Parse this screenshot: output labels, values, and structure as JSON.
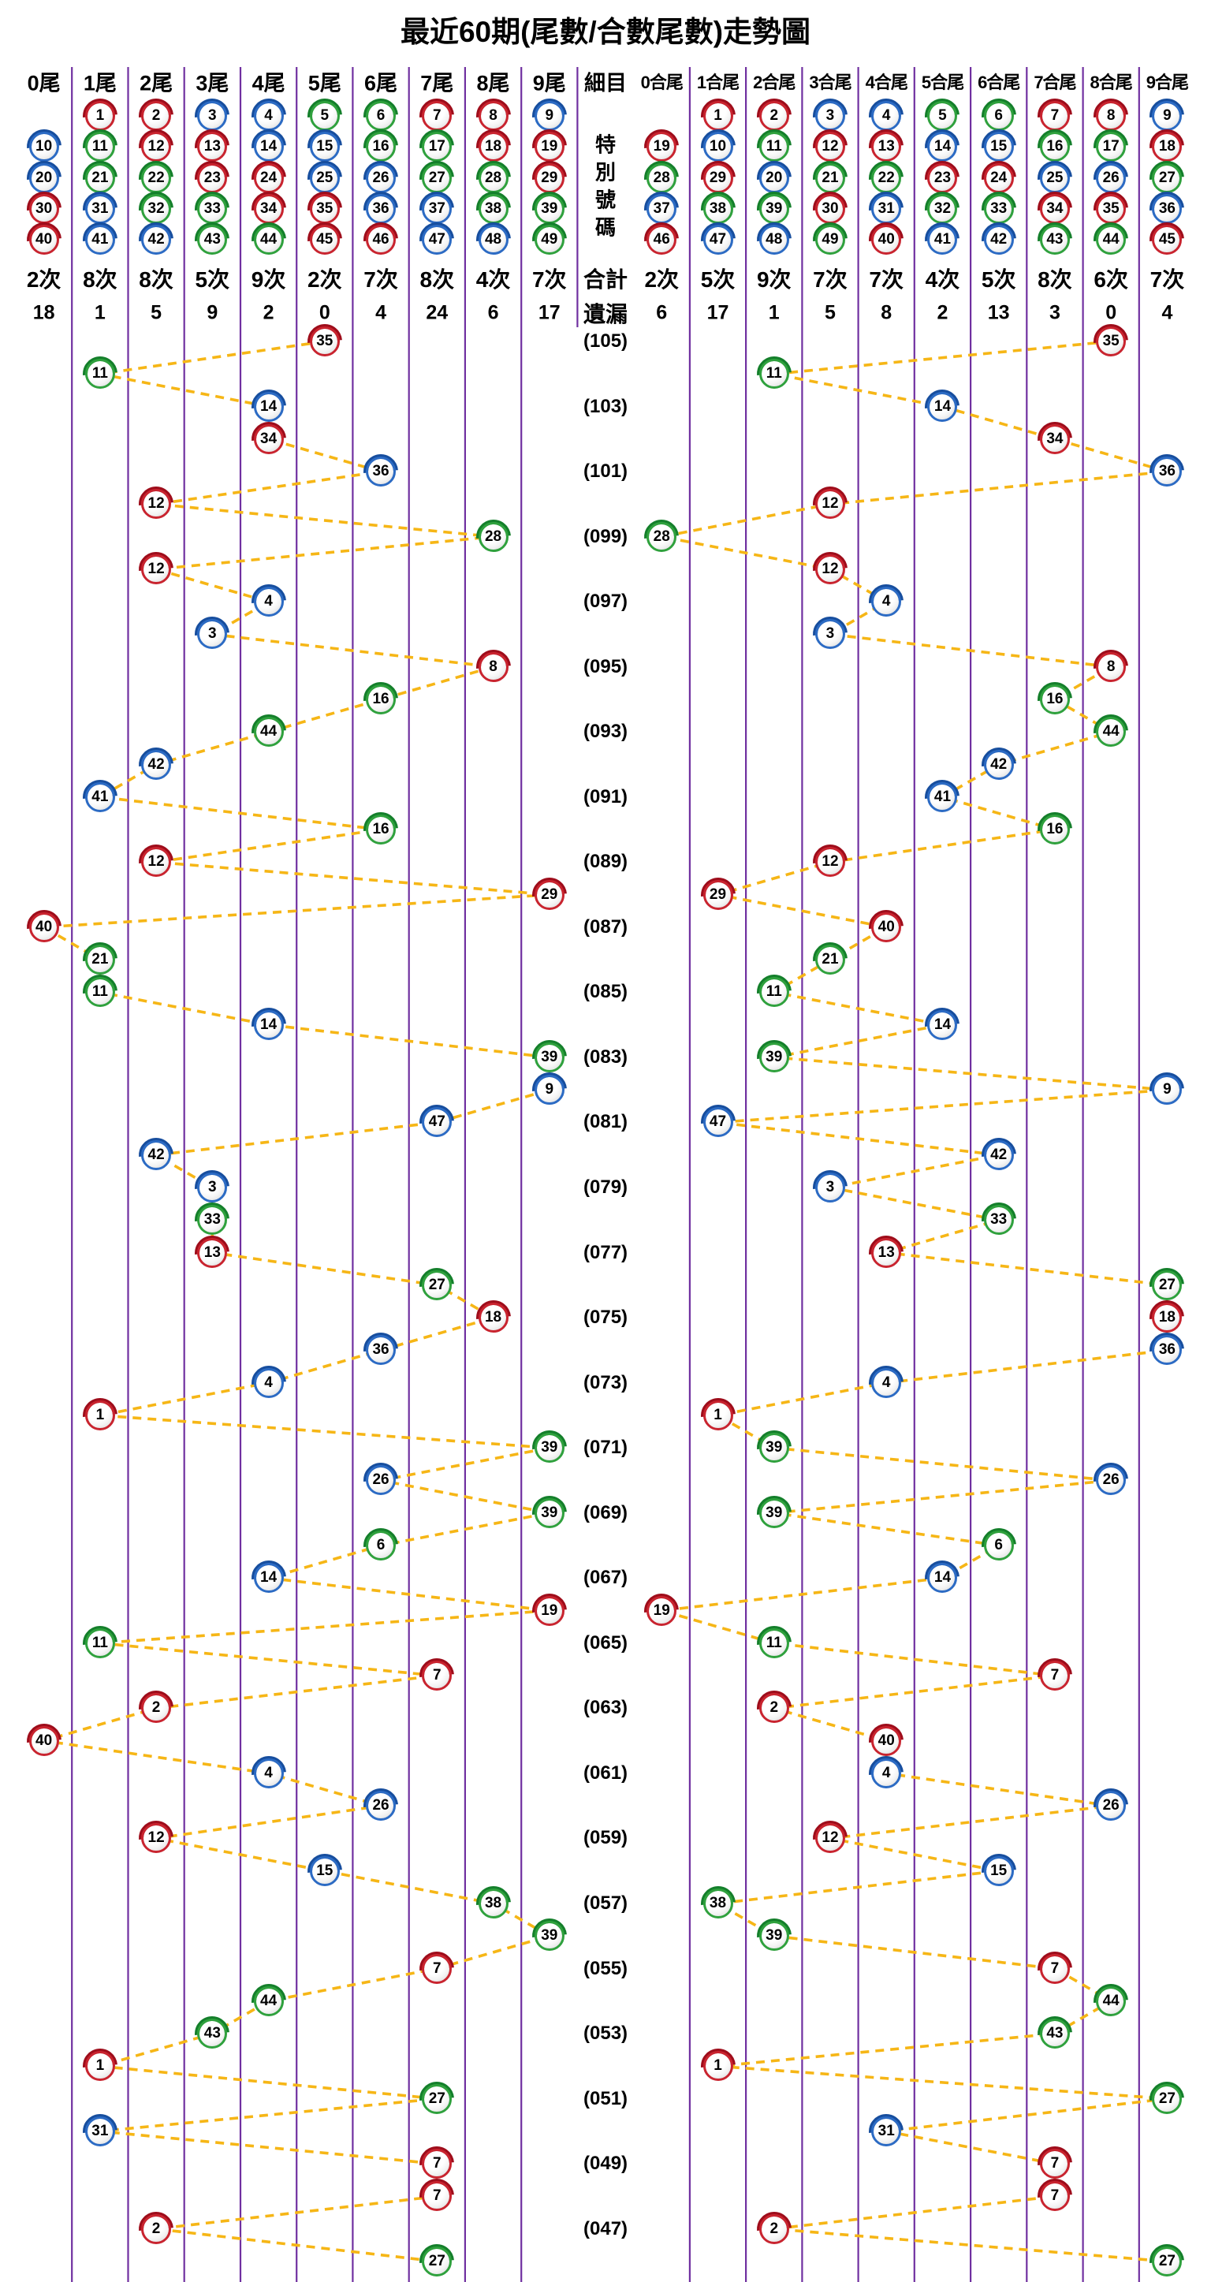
{
  "title": "最近60期(尾數/合數尾數)走勢圖",
  "colors": {
    "red_ball": "#c9242f",
    "blue_ball": "#2c6bc4",
    "green_ball": "#2fa13d",
    "grid_line": "#7030a0",
    "trend_line": "#f6b616"
  },
  "balls": {
    "red": [
      1,
      2,
      7,
      8,
      12,
      13,
      18,
      19,
      23,
      24,
      29,
      30,
      34,
      35,
      40,
      45,
      46
    ],
    "blue": [
      3,
      4,
      9,
      10,
      14,
      15,
      20,
      25,
      26,
      31,
      36,
      37,
      41,
      42,
      47,
      48
    ],
    "green": [
      5,
      6,
      11,
      16,
      17,
      21,
      22,
      27,
      28,
      32,
      33,
      38,
      39,
      43,
      44,
      49
    ]
  },
  "columns": {
    "detail": {
      "header": "細目",
      "special": "特別號碼",
      "total": "合計",
      "miss": "遺漏"
    },
    "tails": [
      {
        "header": "0尾",
        "balls": [
          10,
          20,
          30,
          40
        ],
        "count": "2次",
        "miss": "18"
      },
      {
        "header": "1尾",
        "balls": [
          1,
          11,
          21,
          31,
          41
        ],
        "count": "8次",
        "miss": "1"
      },
      {
        "header": "2尾",
        "balls": [
          2,
          12,
          22,
          32,
          42
        ],
        "count": "8次",
        "miss": "5"
      },
      {
        "header": "3尾",
        "balls": [
          3,
          13,
          23,
          33,
          43
        ],
        "count": "5次",
        "miss": "9"
      },
      {
        "header": "4尾",
        "balls": [
          4,
          14,
          24,
          34,
          44
        ],
        "count": "9次",
        "miss": "2"
      },
      {
        "header": "5尾",
        "balls": [
          5,
          15,
          25,
          35,
          45
        ],
        "count": "2次",
        "miss": "0"
      },
      {
        "header": "6尾",
        "balls": [
          6,
          16,
          26,
          36,
          46
        ],
        "count": "7次",
        "miss": "4"
      },
      {
        "header": "7尾",
        "balls": [
          7,
          17,
          27,
          37,
          47
        ],
        "count": "8次",
        "miss": "24"
      },
      {
        "header": "8尾",
        "balls": [
          8,
          18,
          28,
          38,
          48
        ],
        "count": "4次",
        "miss": "6"
      },
      {
        "header": "9尾",
        "balls": [
          9,
          19,
          29,
          39,
          49
        ],
        "count": "7次",
        "miss": "17"
      }
    ],
    "sums": [
      {
        "header": "0合尾",
        "balls": [
          19,
          28,
          37,
          46
        ],
        "count": "2次",
        "miss": "6"
      },
      {
        "header": "1合尾",
        "balls": [
          1,
          10,
          29,
          38,
          47
        ],
        "count": "5次",
        "miss": "17"
      },
      {
        "header": "2合尾",
        "balls": [
          2,
          11,
          20,
          39,
          48
        ],
        "count": "9次",
        "miss": "1"
      },
      {
        "header": "3合尾",
        "balls": [
          3,
          12,
          21,
          30,
          49
        ],
        "count": "7次",
        "miss": "5"
      },
      {
        "header": "4合尾",
        "balls": [
          4,
          13,
          22,
          31,
          40
        ],
        "count": "7次",
        "miss": "8"
      },
      {
        "header": "5合尾",
        "balls": [
          5,
          14,
          23,
          32,
          41
        ],
        "count": "4次",
        "miss": "2"
      },
      {
        "header": "6合尾",
        "balls": [
          6,
          15,
          24,
          33,
          42
        ],
        "count": "5次",
        "miss": "13"
      },
      {
        "header": "7合尾",
        "balls": [
          7,
          16,
          25,
          34,
          43
        ],
        "count": "8次",
        "miss": "3"
      },
      {
        "header": "8合尾",
        "balls": [
          8,
          17,
          26,
          35,
          44
        ],
        "count": "6次",
        "miss": "0"
      },
      {
        "header": "9合尾",
        "balls": [
          9,
          18,
          27,
          36,
          45
        ],
        "count": "7次",
        "miss": "4"
      }
    ]
  },
  "chart_data": {
    "type": "scatter",
    "title": "最近60期(尾數/合數尾數)走勢圖",
    "x_left_categories": [
      "0尾",
      "1尾",
      "2尾",
      "3尾",
      "4尾",
      "5尾",
      "6尾",
      "7尾",
      "8尾",
      "9尾"
    ],
    "x_right_categories": [
      "0合尾",
      "1合尾",
      "2合尾",
      "3合尾",
      "4合尾",
      "5合尾",
      "6合尾",
      "7合尾",
      "8合尾",
      "9合尾"
    ],
    "y_axis": "period numbers, top (105) to bottom (046), labels shown every 2 rows",
    "left_rule": "column = number mod 10",
    "right_rule": "column = last digit of digit sum",
    "draws": [
      {
        "period": 105,
        "number": 35
      },
      {
        "period": 104,
        "number": 11
      },
      {
        "period": 103,
        "number": 14
      },
      {
        "period": 102,
        "number": 34
      },
      {
        "period": 101,
        "number": 36
      },
      {
        "period": 100,
        "number": 12
      },
      {
        "period": 99,
        "number": 28
      },
      {
        "period": 98,
        "number": 12
      },
      {
        "period": 97,
        "number": 4
      },
      {
        "period": 96,
        "number": 3
      },
      {
        "period": 95,
        "number": 8
      },
      {
        "period": 94,
        "number": 16
      },
      {
        "period": 93,
        "number": 44
      },
      {
        "period": 92,
        "number": 42
      },
      {
        "period": 91,
        "number": 41
      },
      {
        "period": 90,
        "number": 16
      },
      {
        "period": 89,
        "number": 12
      },
      {
        "period": 88,
        "number": 29
      },
      {
        "period": 87,
        "number": 40
      },
      {
        "period": 86,
        "number": 21
      },
      {
        "period": 85,
        "number": 11
      },
      {
        "period": 84,
        "number": 14
      },
      {
        "period": 83,
        "number": 39
      },
      {
        "period": 82,
        "number": 9
      },
      {
        "period": 81,
        "number": 47
      },
      {
        "period": 80,
        "number": 42
      },
      {
        "period": 79,
        "number": 3
      },
      {
        "period": 78,
        "number": 33
      },
      {
        "period": 77,
        "number": 13
      },
      {
        "period": 76,
        "number": 27
      },
      {
        "period": 75,
        "number": 18
      },
      {
        "period": 74,
        "number": 36
      },
      {
        "period": 73,
        "number": 4
      },
      {
        "period": 72,
        "number": 1
      },
      {
        "period": 71,
        "number": 39
      },
      {
        "period": 70,
        "number": 26
      },
      {
        "period": 69,
        "number": 39
      },
      {
        "period": 68,
        "number": 6
      },
      {
        "period": 67,
        "number": 14
      },
      {
        "period": 66,
        "number": 19
      },
      {
        "period": 65,
        "number": 11
      },
      {
        "period": 64,
        "number": 7
      },
      {
        "period": 63,
        "number": 2
      },
      {
        "period": 62,
        "number": 40
      },
      {
        "period": 61,
        "number": 4
      },
      {
        "period": 60,
        "number": 26
      },
      {
        "period": 59,
        "number": 12
      },
      {
        "period": 58,
        "number": 15
      },
      {
        "period": 57,
        "number": 38
      },
      {
        "period": 56,
        "number": 39
      },
      {
        "period": 55,
        "number": 7
      },
      {
        "period": 54,
        "number": 44
      },
      {
        "period": 53,
        "number": 43
      },
      {
        "period": 52,
        "number": 1
      },
      {
        "period": 51,
        "number": 27
      },
      {
        "period": 50,
        "number": 31
      },
      {
        "period": 49,
        "number": 7
      },
      {
        "period": 48,
        "number": 7
      },
      {
        "period": 47,
        "number": 2
      },
      {
        "period": 46,
        "number": 27
      }
    ]
  }
}
